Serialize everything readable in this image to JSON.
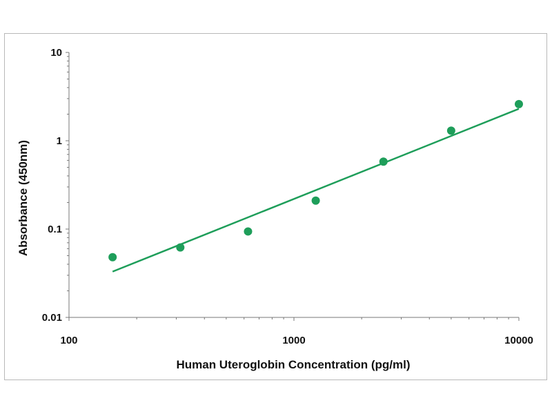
{
  "chart_data": {
    "type": "scatter",
    "title": "",
    "xlabel": "Human Uteroglobin Concentration (pg/ml)",
    "ylabel": "Absorbance (450nm)",
    "xscale": "log",
    "yscale": "log",
    "xlim": [
      100,
      10000
    ],
    "ylim": [
      0.01,
      10
    ],
    "x_ticks": [
      "100",
      "1000",
      "10000"
    ],
    "y_ticks": [
      "10",
      "1",
      "0.1",
      "0.01"
    ],
    "grid": false,
    "legend": "none",
    "series": [
      {
        "marker_color": "#1e9e5a",
        "points": [
          {
            "x": 156.25,
            "y": 0.048
          },
          {
            "x": 312.5,
            "y": 0.062
          },
          {
            "x": 625,
            "y": 0.094
          },
          {
            "x": 1250,
            "y": 0.21
          },
          {
            "x": 2500,
            "y": 0.58
          },
          {
            "x": 5000,
            "y": 1.3
          },
          {
            "x": 10000,
            "y": 2.6
          }
        ]
      }
    ],
    "fit_line": {
      "color": "#1e9e5a",
      "x": [
        156.25,
        10000
      ],
      "y": [
        0.033,
        2.3
      ]
    }
  }
}
